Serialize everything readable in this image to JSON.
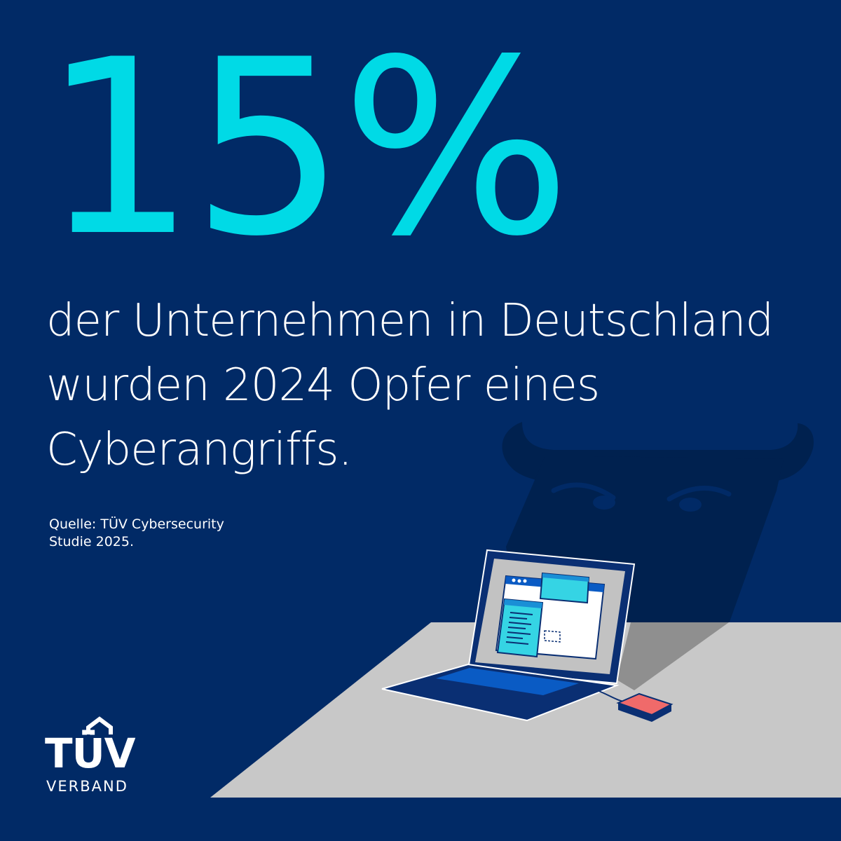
{
  "stat": {
    "value": "15%"
  },
  "headline": {
    "line1": "der Unternehmen in Deutschland",
    "line2": "wurden 2024 Opfer eines",
    "line3": "Cyberangriffs."
  },
  "source": {
    "line1": "Quelle: TÜV Cybersecurity",
    "line2": "Studie 2025."
  },
  "logo": {
    "brand": "TÜV",
    "sub": "VERBAND"
  },
  "colors": {
    "background": "#012a66",
    "accent": "#00dae6",
    "text": "#ffffff",
    "table": "#c8c8c8",
    "laptop": "#0a2f73",
    "drive": "#f06a6a"
  },
  "illustration": {
    "icons": [
      "devil-shadow-icon",
      "laptop-icon",
      "external-drive-icon"
    ]
  }
}
